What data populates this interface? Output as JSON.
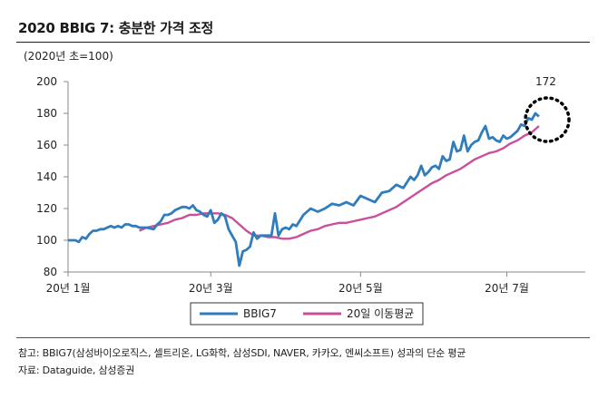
{
  "title": "2020 BBIG 7: 충분한 가격 조정",
  "unit_label": "(2020년 초=100)",
  "peak_label": "172",
  "colors": {
    "bbig7": "#2f7dbd",
    "ma20": "#c94f9c",
    "axis": "#888888",
    "circle": "#000000"
  },
  "notes": {
    "line1": "참고: BBIG7(삼성바이오로직스, 셀트리온, LG화학, 삼성SDI, NAVER, 카카오, 엔씨소프트) 성과의 단순 평균",
    "line2": "자료: Dataguide, 삼성증권"
  },
  "chart_data": {
    "type": "line",
    "title": "2020 BBIG 7: 충분한 가격 조정",
    "ylabel": "(2020년 초=100)",
    "ylim": [
      80,
      200
    ],
    "yticks": [
      80,
      100,
      120,
      140,
      160,
      180,
      200
    ],
    "xlim": [
      0,
      145
    ],
    "xticks": [
      {
        "x": 0,
        "label": "20년 1월"
      },
      {
        "x": 40,
        "label": "20년 3월"
      },
      {
        "x": 82,
        "label": "20년 5월"
      },
      {
        "x": 123,
        "label": "20년 7월"
      }
    ],
    "legend": "bottom",
    "series": [
      {
        "name": "BBIG7",
        "x": [
          0,
          2,
          3,
          4,
          5,
          6,
          7,
          8,
          9,
          10,
          11,
          12,
          13,
          14,
          15,
          16,
          17,
          18,
          19,
          20,
          22,
          24,
          25,
          26,
          27,
          28,
          29,
          30,
          31,
          32,
          33,
          34,
          35,
          36,
          37,
          38,
          39,
          40,
          41,
          42,
          43,
          44,
          45,
          46,
          47,
          48,
          49,
          50,
          51,
          52,
          53,
          54,
          55,
          56,
          57,
          58,
          59,
          60,
          61,
          62,
          63,
          64,
          66,
          68,
          70,
          72,
          74,
          76,
          78,
          80,
          82,
          84,
          86,
          88,
          90,
          92,
          94,
          96,
          97,
          98,
          99,
          100,
          101,
          102,
          103,
          104,
          105,
          106,
          107,
          108,
          109,
          110,
          111,
          112,
          113,
          114,
          115,
          116,
          117,
          118,
          119,
          120,
          121,
          122,
          123,
          124,
          125,
          126,
          127,
          128,
          129,
          130,
          131,
          132
        ],
        "values": [
          100,
          100,
          99,
          102,
          101,
          104,
          106,
          106,
          107,
          107,
          108,
          109,
          108,
          109,
          108,
          110,
          110,
          109,
          109,
          108,
          108,
          107,
          110,
          112,
          116,
          116,
          117,
          119,
          120,
          121,
          121,
          120,
          122,
          119,
          118,
          116,
          115,
          119,
          111,
          113,
          117,
          115,
          107,
          103,
          99,
          84,
          93,
          94,
          96,
          105,
          101,
          103,
          103,
          103,
          103,
          117,
          103,
          107,
          108,
          107,
          110,
          109,
          116,
          120,
          118,
          120,
          123,
          122,
          124,
          122,
          128,
          126,
          124,
          130,
          131,
          135,
          133,
          140,
          138,
          141,
          147,
          141,
          143,
          146,
          147,
          145,
          153,
          150,
          151,
          162,
          156,
          157,
          166,
          156,
          160,
          162,
          163,
          168,
          172,
          164,
          165,
          163,
          162,
          166,
          164,
          165,
          167,
          169,
          173,
          172,
          177,
          176,
          180,
          178
        ],
        "color": "#2f7dbd"
      },
      {
        "name": "20일 이동평균",
        "x": [
          20,
          22,
          24,
          26,
          28,
          30,
          32,
          34,
          36,
          38,
          40,
          42,
          44,
          46,
          48,
          50,
          52,
          54,
          56,
          58,
          60,
          62,
          64,
          66,
          68,
          70,
          72,
          74,
          76,
          78,
          80,
          82,
          84,
          86,
          88,
          90,
          92,
          94,
          96,
          98,
          100,
          102,
          104,
          106,
          108,
          110,
          112,
          114,
          116,
          118,
          120,
          122,
          124,
          126,
          128,
          130,
          132
        ],
        "values": [
          106,
          108,
          109,
          110,
          111,
          113,
          114,
          116,
          116,
          117,
          117,
          117,
          116,
          114,
          110,
          106,
          103,
          103,
          102,
          102,
          101,
          101,
          102,
          104,
          106,
          107,
          109,
          110,
          111,
          111,
          112,
          113,
          114,
          115,
          117,
          119,
          121,
          124,
          127,
          130,
          133,
          136,
          138,
          141,
          143,
          145,
          148,
          151,
          153,
          155,
          156,
          158,
          161,
          163,
          166,
          168,
          172
        ],
        "color": "#c94f9c"
      }
    ]
  }
}
